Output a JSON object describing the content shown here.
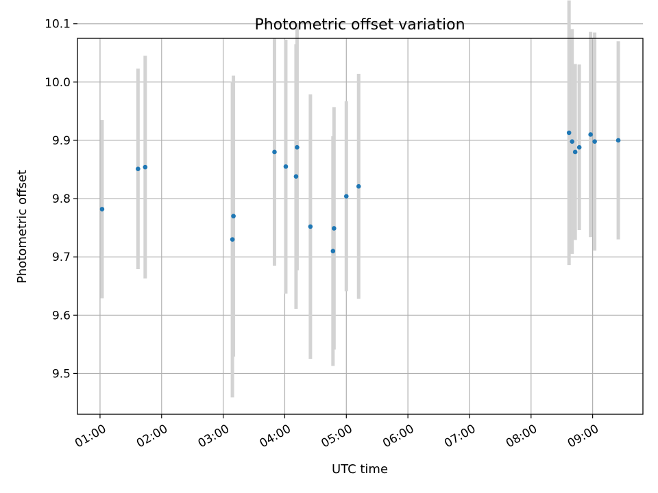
{
  "chart_data": {
    "type": "scatter",
    "title": "Photometric offset variation",
    "xlabel": "UTC time",
    "ylabel": "Photometric offset",
    "x_tick_labels": [
      "01:00",
      "02:00",
      "03:00",
      "04:00",
      "05:00",
      "06:00",
      "07:00",
      "08:00",
      "09:00"
    ],
    "y_tick_labels": [
      "9.5",
      "9.6",
      "9.7",
      "9.8",
      "9.9",
      "10.0",
      "10.1"
    ],
    "y_ticks": [
      9.5,
      9.6,
      9.7,
      9.8,
      9.9,
      10.0,
      10.1
    ],
    "xlim": [
      "00:38",
      "09:49"
    ],
    "ylim": [
      9.43,
      10.075
    ],
    "grid": true,
    "colors": {
      "marker": "#1f77b4",
      "error_bar": "#d3d3d3"
    },
    "series": [
      {
        "x": [
          "01:02",
          "01:37",
          "01:44",
          "03:09",
          "03:10",
          "03:50",
          "04:01",
          "04:11",
          "04:12",
          "04:25",
          "04:47",
          "04:48",
          "05:00",
          "05:12",
          "08:37",
          "08:40",
          "08:43",
          "08:47",
          "08:58",
          "09:02",
          "09:25"
        ],
        "y": [
          9.782,
          9.851,
          9.854,
          9.73,
          9.77,
          9.88,
          9.855,
          9.838,
          9.888,
          9.752,
          9.71,
          9.749,
          9.804,
          9.821,
          9.913,
          9.898,
          9.88,
          9.888,
          9.91,
          9.898,
          9.9
        ],
        "yerr": [
          0.153,
          0.172,
          0.191,
          0.271,
          0.241,
          0.195,
          0.218,
          0.227,
          0.211,
          0.227,
          0.197,
          0.208,
          0.163,
          0.193,
          0.227,
          0.193,
          0.151,
          0.142,
          0.176,
          0.187,
          0.17
        ]
      }
    ]
  }
}
